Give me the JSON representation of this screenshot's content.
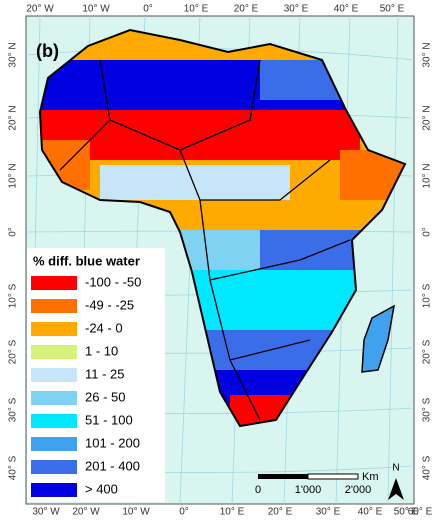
{
  "panel_label": "(b)",
  "legend": {
    "title": "% diff. blue water",
    "items": [
      {
        "label": "-100 - -50",
        "color": "#ff0000"
      },
      {
        "label": "-49 - -25",
        "color": "#ff7000"
      },
      {
        "label": "-24 - 0",
        "color": "#ffaa00"
      },
      {
        "label": "1 - 10",
        "color": "#d6f27a"
      },
      {
        "label": "11 - 25",
        "color": "#c6e6f7"
      },
      {
        "label": "26 - 50",
        "color": "#80d2f2"
      },
      {
        "label": "51 - 100",
        "color": "#00e8ff"
      },
      {
        "label": "101 - 200",
        "color": "#3fa2ee"
      },
      {
        "label": "201 - 400",
        "color": "#3a6ee8"
      },
      {
        "label": "> 400",
        "color": "#0000e0"
      }
    ]
  },
  "graticule": {
    "top": [
      "20° W",
      "10° W",
      "0°",
      "10° E",
      "20° E",
      "30° E",
      "40° E",
      "50° E"
    ],
    "bottom": [
      "30° W",
      "20° W",
      "10° W",
      "0°",
      "10° E",
      "20° E",
      "30° E",
      "40° E",
      "50° E",
      "60° E"
    ],
    "left": [
      "30° N",
      "20° N",
      "10° N",
      "0°",
      "10° S",
      "20° S",
      "30° S",
      "40° S"
    ],
    "right": [
      "30° N",
      "20° N",
      "10° N",
      "0°",
      "10° S",
      "20° S",
      "30° S",
      "40° S"
    ]
  },
  "scale_bar": {
    "labels": [
      "0",
      "1'000",
      "2'000"
    ],
    "unit": "Km"
  },
  "north_arrow": "N"
}
